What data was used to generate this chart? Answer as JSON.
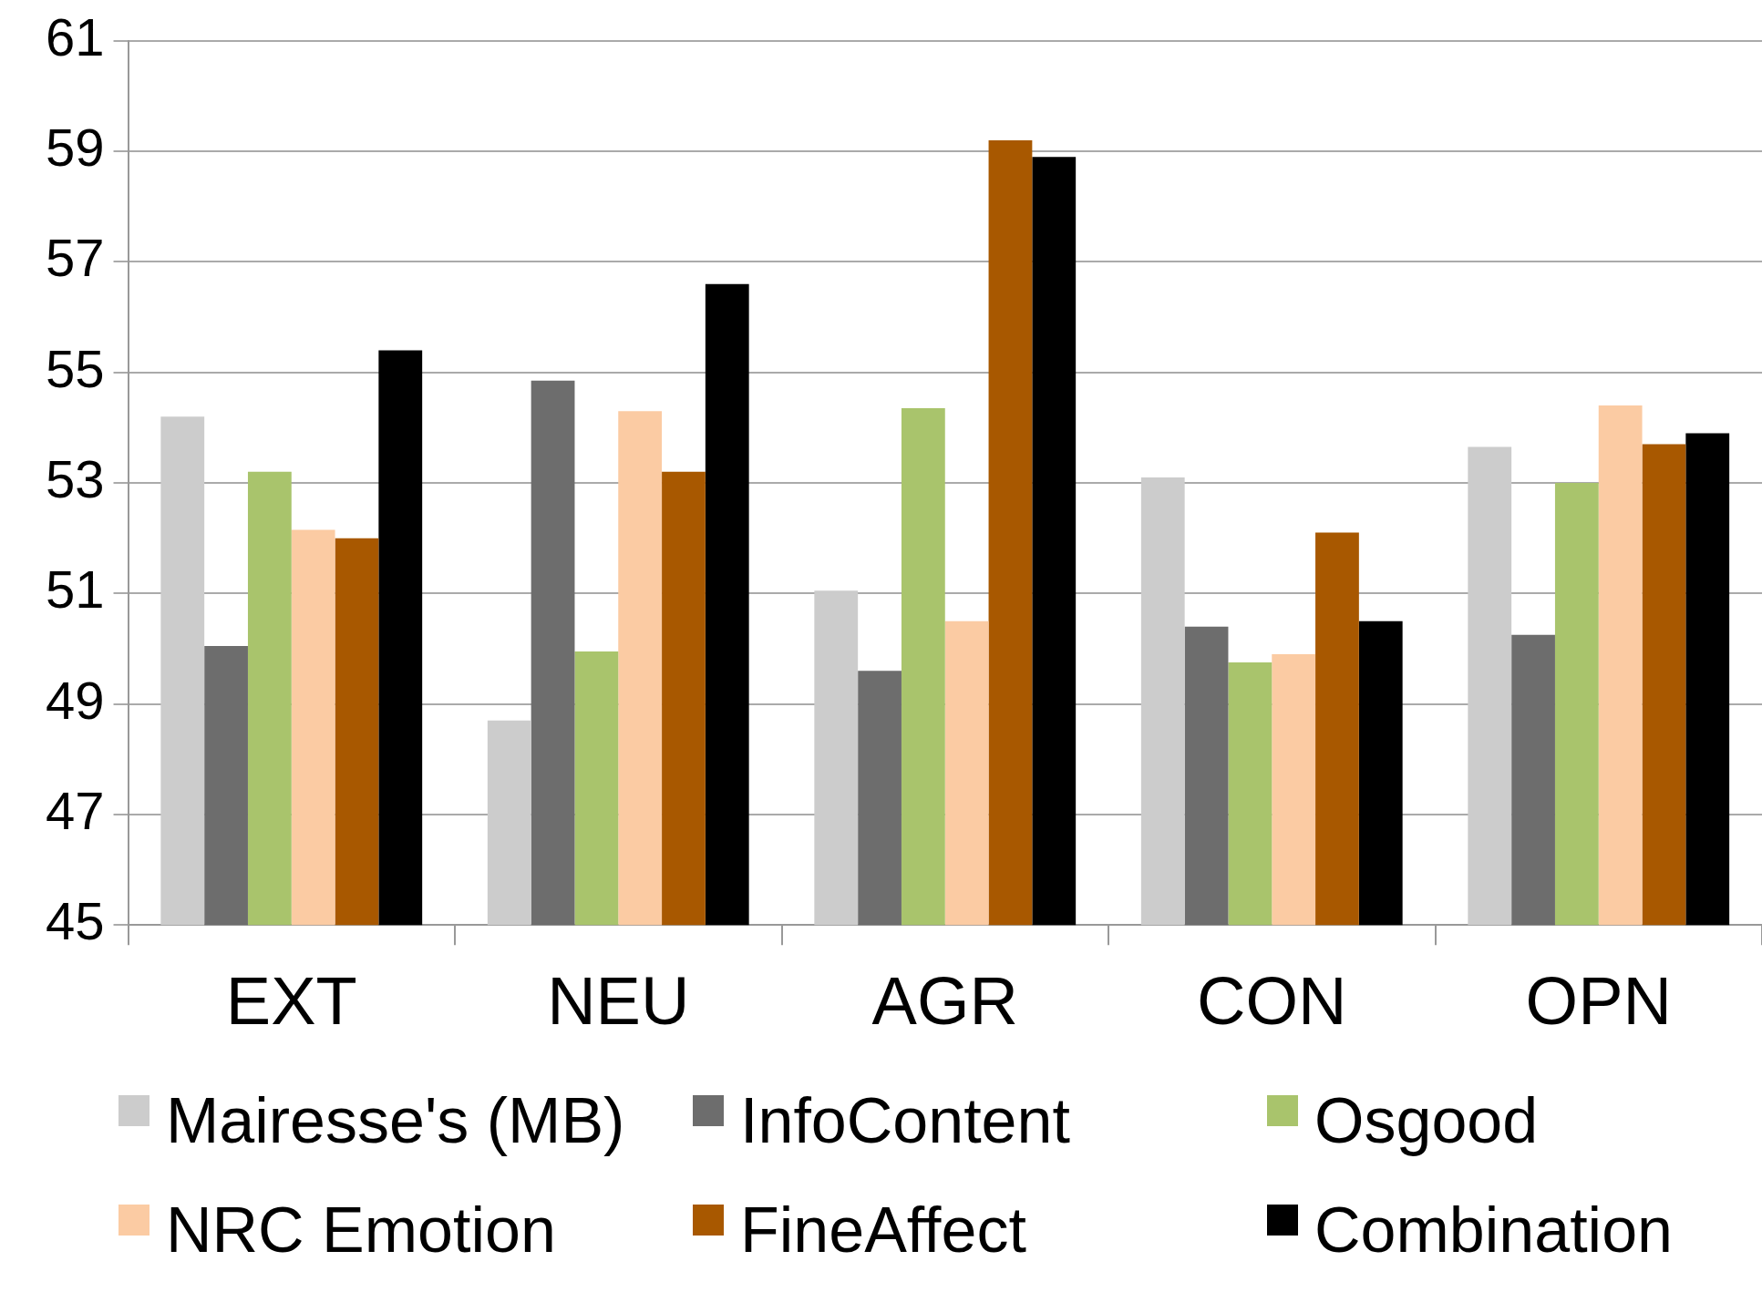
{
  "chart_data": {
    "type": "bar",
    "categories": [
      "EXT",
      "NEU",
      "AGR",
      "CON",
      "OPN"
    ],
    "series": [
      {
        "name": "Mairesse's (MB)",
        "color": "#cccccc",
        "values": [
          54.2,
          48.7,
          51.05,
          53.1,
          53.65
        ]
      },
      {
        "name": "InfoContent",
        "color": "#6d6d6d",
        "values": [
          50.05,
          54.85,
          49.6,
          50.4,
          50.25
        ]
      },
      {
        "name": "Osgood",
        "color": "#a9c46c",
        "values": [
          53.2,
          49.95,
          54.35,
          49.75,
          53.0
        ]
      },
      {
        "name": "NRC Emotion",
        "color": "#fbcba3",
        "values": [
          52.15,
          54.3,
          50.5,
          49.9,
          54.4
        ]
      },
      {
        "name": "FineAffect",
        "color": "#a85800",
        "values": [
          52.0,
          53.2,
          59.2,
          52.1,
          53.7
        ]
      },
      {
        "name": "Combination",
        "color": "#000000",
        "values": [
          55.4,
          56.6,
          58.9,
          50.5,
          53.9
        ]
      }
    ],
    "ylim": [
      45,
      61
    ],
    "yticks": [
      45,
      47,
      49,
      51,
      53,
      55,
      57,
      59,
      61
    ],
    "grid": "y",
    "legend": "bottom"
  }
}
